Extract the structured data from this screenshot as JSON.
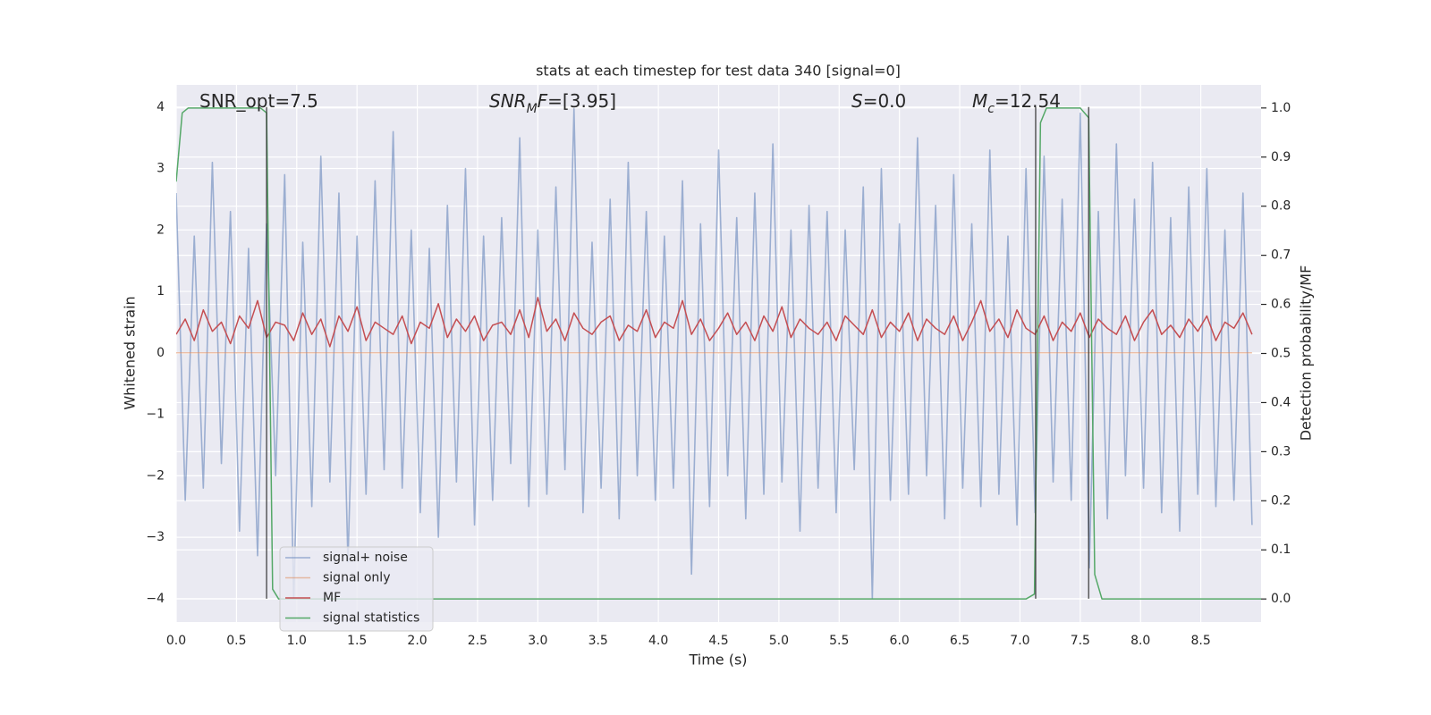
{
  "chart_data": {
    "type": "line",
    "title": "stats at each timestep for test data 340 [signal=0]",
    "xlabel": "Time (s)",
    "ylabel": "Whitened strain",
    "y2label": "Detection probability/MF",
    "xlim": [
      0,
      9.0
    ],
    "ylim": [
      -4.38,
      4.36
    ],
    "y2lim": [
      -0.047,
      1.047
    ],
    "xticks": [
      {
        "value": 0,
        "label": "0.0"
      },
      0.5,
      {
        "value": 1,
        "label": "1.0"
      },
      1.5,
      {
        "value": 2,
        "label": "2.0"
      },
      2.5,
      {
        "value": 3,
        "label": "3.0"
      },
      3.5,
      {
        "value": 4,
        "label": "4.0"
      },
      4.5,
      {
        "value": 5,
        "label": "5.0"
      },
      5.5,
      {
        "value": 6,
        "label": "6.0"
      },
      6.5,
      {
        "value": 7,
        "label": "7.0"
      },
      7.5,
      {
        "value": 8,
        "label": "8.0"
      },
      8.5
    ],
    "yticks": [
      {
        "value": -4,
        "label": "−4"
      },
      {
        "value": -3,
        "label": "−3"
      },
      {
        "value": -2,
        "label": "−2"
      },
      {
        "value": -1,
        "label": "−1"
      },
      0,
      1,
      2,
      3,
      4
    ],
    "y2ticks": [
      {
        "value": 0,
        "label": "0.0"
      },
      0.1,
      0.2,
      0.3,
      0.4,
      0.5,
      0.6,
      0.7,
      0.8,
      0.9,
      {
        "value": 1,
        "label": "1.0"
      }
    ],
    "grid": true,
    "legend": "lower left",
    "annotations": [
      {
        "parts": [
          {
            "text": "SNR_opt=7.5"
          }
        ]
      },
      {
        "parts": [
          {
            "text": "SNR",
            "italic": true
          },
          {
            "text": "M",
            "italic": true,
            "sub": true
          },
          {
            "text": "F",
            "italic": true
          },
          {
            "text": "=[3.95]"
          }
        ]
      },
      {
        "parts": [
          {
            "text": "S",
            "italic": true
          },
          {
            "text": "=0.0"
          }
        ]
      },
      {
        "parts": [
          {
            "text": "M",
            "italic": true
          },
          {
            "text": "c",
            "italic": true,
            "sub": true
          },
          {
            "text": "=12.54"
          }
        ]
      }
    ],
    "vlines": {
      "x": [
        0.75,
        7.13,
        7.57
      ],
      "ymin": -4,
      "ymax": 4,
      "color": "#333333"
    },
    "x": [
      0,
      0.075,
      0.15,
      0.225,
      0.3,
      0.375,
      0.45,
      0.525,
      0.6,
      0.675,
      0.75,
      0.825,
      0.9,
      0.975,
      1.05,
      1.125,
      1.2,
      1.275,
      1.35,
      1.425,
      1.5,
      1.575,
      1.65,
      1.725,
      1.8,
      1.875,
      1.95,
      2.025,
      2.1,
      2.175,
      2.25,
      2.325,
      2.4,
      2.475,
      2.55,
      2.625,
      2.7,
      2.775,
      2.85,
      2.925,
      3.0,
      3.075,
      3.15,
      3.225,
      3.3,
      3.375,
      3.45,
      3.525,
      3.6,
      3.675,
      3.75,
      3.825,
      3.9,
      3.975,
      4.05,
      4.125,
      4.2,
      4.275,
      4.35,
      4.425,
      4.5,
      4.575,
      4.65,
      4.725,
      4.8,
      4.875,
      4.95,
      5.025,
      5.1,
      5.175,
      5.25,
      5.325,
      5.4,
      5.475,
      5.55,
      5.625,
      5.7,
      5.775,
      5.85,
      5.925,
      6.0,
      6.075,
      6.15,
      6.225,
      6.3,
      6.375,
      6.45,
      6.525,
      6.6,
      6.675,
      6.75,
      6.825,
      6.9,
      6.975,
      7.05,
      7.125,
      7.2,
      7.275,
      7.35,
      7.425,
      7.5,
      7.575,
      7.65,
      7.725,
      7.8,
      7.875,
      7.95,
      8.025,
      8.1,
      8.175,
      8.25,
      8.325,
      8.4,
      8.475,
      8.55,
      8.625,
      8.7,
      8.775,
      8.85,
      8.925
    ],
    "series": [
      {
        "name": "signal+ noise",
        "color": "#4c72b0",
        "opacity": 0.5,
        "values": [
          2.6,
          -2.4,
          1.9,
          -2.2,
          3.1,
          -1.8,
          2.3,
          -2.9,
          1.7,
          -3.3,
          2.1,
          -2.0,
          2.9,
          -4.0,
          1.8,
          -2.5,
          3.2,
          -2.1,
          2.6,
          -3.4,
          1.9,
          -2.3,
          2.8,
          -1.9,
          3.6,
          -2.2,
          2.0,
          -2.6,
          1.7,
          -3.0,
          2.4,
          -2.1,
          3.0,
          -2.8,
          1.9,
          -2.4,
          2.2,
          -1.8,
          3.5,
          -2.5,
          2.0,
          -2.3,
          2.7,
          -1.9,
          3.97,
          -2.6,
          1.8,
          -2.2,
          2.5,
          -2.7,
          3.1,
          -2.0,
          2.3,
          -2.4,
          1.9,
          -2.2,
          2.8,
          -3.6,
          2.1,
          -2.5,
          3.3,
          -2.0,
          2.2,
          -2.7,
          2.6,
          -2.3,
          3.4,
          -2.1,
          2.0,
          -2.9,
          2.4,
          -2.2,
          2.3,
          -2.6,
          2.0,
          -1.9,
          2.7,
          -4.0,
          3.0,
          -2.4,
          2.1,
          -2.3,
          3.5,
          -2.0,
          2.4,
          -2.7,
          2.9,
          -2.2,
          2.1,
          -2.5,
          3.3,
          -2.3,
          1.9,
          -2.8,
          3.0,
          -2.6,
          3.2,
          -2.1,
          2.5,
          -2.4,
          3.9,
          -3.5,
          2.3,
          -2.7,
          3.4,
          -2.0,
          2.5,
          -2.2,
          3.1,
          -2.6,
          2.2,
          -2.9,
          2.7,
          -2.3,
          3.0,
          -2.5,
          2.0,
          -2.4,
          2.6,
          -2.8
        ]
      },
      {
        "name": "signal only",
        "color": "#dd8452",
        "opacity": 0.5,
        "values": [
          0,
          0,
          0,
          0,
          0,
          0,
          0,
          0,
          0,
          0,
          0,
          0,
          0,
          0,
          0,
          0,
          0,
          0,
          0,
          0,
          0,
          0,
          0,
          0,
          0,
          0,
          0,
          0,
          0,
          0,
          0,
          0,
          0,
          0,
          0,
          0,
          0,
          0,
          0,
          0,
          0,
          0,
          0,
          0,
          0,
          0,
          0,
          0,
          0,
          0,
          0,
          0,
          0,
          0,
          0,
          0,
          0,
          0,
          0,
          0,
          0,
          0,
          0,
          0,
          0,
          0,
          0,
          0,
          0,
          0,
          0,
          0,
          0,
          0,
          0,
          0,
          0,
          0,
          0,
          0,
          0,
          0,
          0,
          0,
          0,
          0,
          0,
          0,
          0,
          0,
          0,
          0,
          0,
          0,
          0,
          0,
          0,
          0,
          0,
          0,
          0,
          0,
          0,
          0,
          0,
          0,
          0,
          0,
          0,
          0,
          0,
          0,
          0,
          0,
          0,
          0,
          0,
          0,
          0,
          0
        ]
      },
      {
        "name": "MF",
        "color": "#c44e52",
        "opacity": 1,
        "values": [
          0.3,
          0.55,
          0.2,
          0.7,
          0.35,
          0.5,
          0.15,
          0.6,
          0.4,
          0.85,
          0.25,
          0.5,
          0.45,
          0.2,
          0.65,
          0.3,
          0.55,
          0.1,
          0.6,
          0.35,
          0.75,
          0.2,
          0.5,
          0.4,
          0.3,
          0.6,
          0.15,
          0.5,
          0.4,
          0.8,
          0.25,
          0.55,
          0.35,
          0.6,
          0.2,
          0.45,
          0.5,
          0.3,
          0.7,
          0.25,
          0.9,
          0.35,
          0.55,
          0.2,
          0.65,
          0.4,
          0.3,
          0.5,
          0.6,
          0.2,
          0.45,
          0.35,
          0.7,
          0.25,
          0.5,
          0.4,
          0.85,
          0.3,
          0.55,
          0.2,
          0.4,
          0.65,
          0.3,
          0.5,
          0.2,
          0.6,
          0.35,
          0.75,
          0.25,
          0.55,
          0.4,
          0.3,
          0.5,
          0.2,
          0.6,
          0.45,
          0.3,
          0.7,
          0.25,
          0.5,
          0.35,
          0.65,
          0.2,
          0.55,
          0.4,
          0.3,
          0.6,
          0.2,
          0.5,
          0.85,
          0.35,
          0.55,
          0.25,
          0.7,
          0.4,
          0.3,
          0.6,
          0.2,
          0.5,
          0.35,
          0.65,
          0.25,
          0.55,
          0.4,
          0.3,
          0.6,
          0.2,
          0.5,
          0.7,
          0.3,
          0.45,
          0.25,
          0.55,
          0.35,
          0.6,
          0.2,
          0.5,
          0.4,
          0.65,
          0.3
        ]
      },
      {
        "name": "signal statistics",
        "color": "#55a868",
        "opacity": 1,
        "axis": "y2",
        "x": [
          0,
          0.05,
          0.1,
          0.7,
          0.75,
          0.8,
          0.85,
          7.05,
          7.12,
          7.17,
          7.22,
          7.5,
          7.57,
          7.62,
          7.68,
          9.0
        ],
        "values": [
          0.85,
          0.99,
          1.0,
          1.0,
          0.99,
          0.02,
          0.0,
          0.0,
          0.01,
          0.97,
          1.0,
          1.0,
          0.98,
          0.05,
          0.0,
          0.0
        ]
      }
    ]
  }
}
